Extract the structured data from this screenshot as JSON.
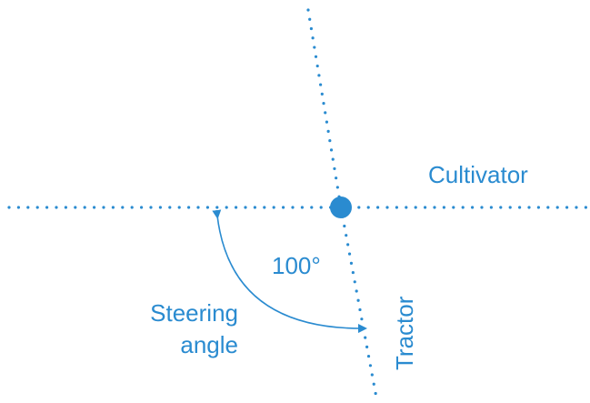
{
  "diagram": {
    "labels": {
      "cultivator": "Cultivator",
      "tractor": "Tractor",
      "angle_value": "100°",
      "steering_line1": "Steering",
      "steering_line2": "angle"
    },
    "colors": {
      "accent": "#2a8bd0",
      "background": "#ffffff"
    }
  }
}
